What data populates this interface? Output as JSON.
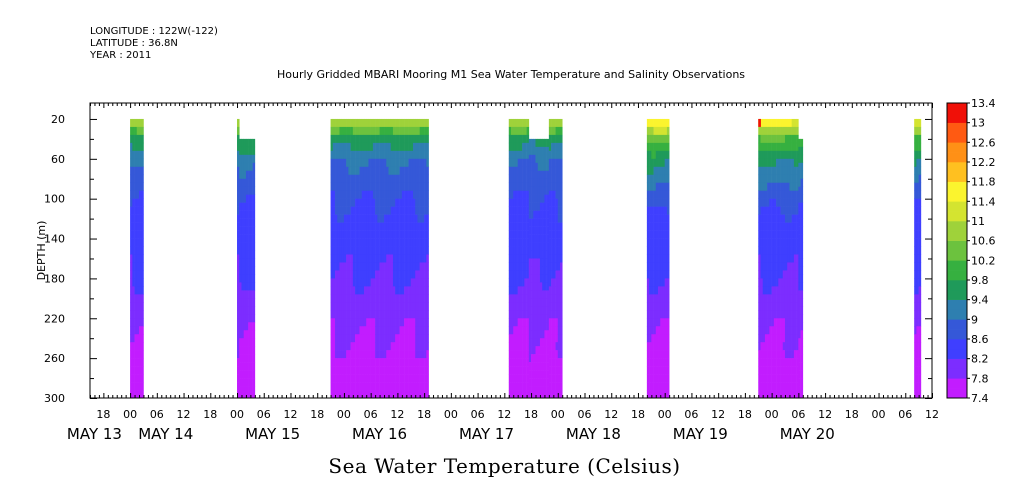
{
  "header": {
    "longitude": "LONGITUDE : 122W(-122)",
    "latitude": "LATITUDE : 36.8N",
    "year": "YEAR : 2011"
  },
  "chart_data": {
    "type": "heatmap",
    "title": "Hourly Gridded MBARI Mooring M1 Sea Water Temperature and Salinity Observations",
    "xlabel": "Sea Water Temperature (Celsius)",
    "ylabel": "DEPTH (m)",
    "x_unit": "hours since 2011-05-12 18:00",
    "xlim": [
      -3,
      186
    ],
    "ylim": [
      300,
      4
    ],
    "y_ticks": [
      20,
      60,
      100,
      140,
      180,
      220,
      260,
      300
    ],
    "x_hour_ticks": [
      {
        "x": 0,
        "label": "18"
      },
      {
        "x": 6,
        "label": "00"
      },
      {
        "x": 12,
        "label": "06"
      },
      {
        "x": 18,
        "label": "12"
      },
      {
        "x": 24,
        "label": "18"
      },
      {
        "x": 30,
        "label": "00"
      },
      {
        "x": 36,
        "label": "06"
      },
      {
        "x": 42,
        "label": "12"
      },
      {
        "x": 48,
        "label": "18"
      },
      {
        "x": 54,
        "label": "00"
      },
      {
        "x": 60,
        "label": "06"
      },
      {
        "x": 66,
        "label": "12"
      },
      {
        "x": 72,
        "label": "18"
      },
      {
        "x": 78,
        "label": "00"
      },
      {
        "x": 84,
        "label": "06"
      },
      {
        "x": 90,
        "label": "12"
      },
      {
        "x": 96,
        "label": "18"
      },
      {
        "x": 102,
        "label": "00"
      },
      {
        "x": 108,
        "label": "06"
      },
      {
        "x": 114,
        "label": "12"
      },
      {
        "x": 120,
        "label": "18"
      },
      {
        "x": 126,
        "label": "00"
      },
      {
        "x": 132,
        "label": "06"
      },
      {
        "x": 138,
        "label": "12"
      },
      {
        "x": 144,
        "label": "18"
      },
      {
        "x": 150,
        "label": "00"
      },
      {
        "x": 156,
        "label": "06"
      },
      {
        "x": 162,
        "label": "12"
      },
      {
        "x": 168,
        "label": "18"
      },
      {
        "x": 174,
        "label": "00"
      },
      {
        "x": 180,
        "label": "06"
      },
      {
        "x": 186,
        "label": "12"
      }
    ],
    "x_day_labels": [
      {
        "x": -2,
        "label": "MAY 13"
      },
      {
        "x": 14,
        "label": "MAY 14"
      },
      {
        "x": 38,
        "label": "MAY 15"
      },
      {
        "x": 62,
        "label": "MAY 16"
      },
      {
        "x": 86,
        "label": "MAY 17"
      },
      {
        "x": 110,
        "label": "MAY 18"
      },
      {
        "x": 134,
        "label": "MAY 19"
      },
      {
        "x": 158,
        "label": "MAY 20"
      }
    ],
    "colorbar": {
      "min": 7.4,
      "max": 13.4,
      "step": 0.2,
      "labels": [
        "13.4",
        "13",
        "12.6",
        "12.2",
        "11.8",
        "11.4",
        "11",
        "10.6",
        "10.2",
        "9.8",
        "9.4",
        "9",
        "8.6",
        "8.2",
        "7.8",
        "7.4"
      ],
      "stops": [
        {
          "v": 7.4,
          "c": "#c21cff"
        },
        {
          "v": 7.8,
          "c": "#7c2dff"
        },
        {
          "v": 8.2,
          "c": "#3f3fff"
        },
        {
          "v": 8.6,
          "c": "#3558d8"
        },
        {
          "v": 9.0,
          "c": "#2e7fb0"
        },
        {
          "v": 9.4,
          "c": "#1f9a5a"
        },
        {
          "v": 9.8,
          "c": "#36b040"
        },
        {
          "v": 10.2,
          "c": "#6cc23e"
        },
        {
          "v": 10.6,
          "c": "#9fd23a"
        },
        {
          "v": 11.0,
          "c": "#d4e430"
        },
        {
          "v": 11.4,
          "c": "#fbf42e"
        },
        {
          "v": 11.8,
          "c": "#ffc020"
        },
        {
          "v": 12.2,
          "c": "#ff9016"
        },
        {
          "v": 12.6,
          "c": "#ff5a12"
        },
        {
          "v": 13.0,
          "c": "#f01008"
        },
        {
          "v": 13.4,
          "c": "#9a0000"
        }
      ]
    },
    "depth_profile": [
      [
        20,
        11.0
      ],
      [
        40,
        9.6
      ],
      [
        60,
        9.0
      ],
      [
        80,
        8.8
      ],
      [
        100,
        8.6
      ],
      [
        140,
        8.4
      ],
      [
        180,
        8.2
      ],
      [
        220,
        7.9
      ],
      [
        260,
        7.7
      ],
      [
        300,
        7.5
      ]
    ],
    "segments": [
      {
        "x0": 6,
        "x1": 9,
        "top": 20,
        "warm": 0.0
      },
      {
        "x0": 30,
        "x1": 30.5,
        "top": 20,
        "warm": 0.2
      },
      {
        "x0": 30.5,
        "x1": 34,
        "top": 40,
        "warm": 0.2
      },
      {
        "x0": 51,
        "x1": 73,
        "top": 20,
        "warm": 0.1
      },
      {
        "x0": 91,
        "x1": 95.5,
        "top": 20,
        "warm": 0.0
      },
      {
        "x0": 95.5,
        "x1": 100,
        "top": 40,
        "warm": 0.0
      },
      {
        "x0": 100,
        "x1": 103,
        "top": 20,
        "warm": 0.0
      },
      {
        "x0": 122,
        "x1": 127,
        "top": 20,
        "warm": 0.9
      },
      {
        "x0": 147,
        "x1": 156,
        "top": 20,
        "warm": 0.8
      },
      {
        "x0": 156,
        "x1": 157,
        "top": 40,
        "warm": 0.6
      },
      {
        "x0": 182,
        "x1": 183.5,
        "top": 20,
        "warm": 0.6
      }
    ],
    "hotspot": {
      "x": 147,
      "depth": 20,
      "value": 13.0
    }
  }
}
